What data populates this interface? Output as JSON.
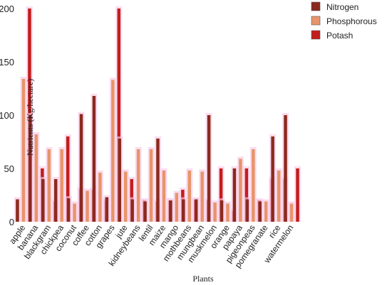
{
  "chart_data": {
    "type": "bar",
    "xlabel": "Plants",
    "ylabel": "Nutrients (Kg/hectare)",
    "ylim": [
      0,
      200
    ],
    "yticks": [
      0,
      50,
      100,
      150,
      200
    ],
    "legend_position": "top-right",
    "categories": [
      "apple",
      "banana",
      "blackgram",
      "chickpea",
      "coconut",
      "coffee",
      "cotton",
      "grapes",
      "jute",
      "kidneybeans",
      "lentil",
      "maize",
      "mango",
      "mothbeans",
      "mungbean",
      "muskmelon",
      "orange",
      "papaya",
      "pigeonpeas",
      "pomegranate",
      "rice",
      "watermelon"
    ],
    "series": [
      {
        "name": "Nitrogen",
        "color": "#8b2a1e",
        "values": [
          21,
          100,
          40,
          40,
          22,
          101,
          118,
          23,
          78,
          21,
          19,
          78,
          20,
          21,
          21,
          100,
          20,
          50,
          21,
          19,
          80,
          100
        ]
      },
      {
        "name": "Phosphorous",
        "color": "#e8956a",
        "values": [
          134,
          82,
          68,
          68,
          17,
          29,
          46,
          133,
          47,
          68,
          68,
          48,
          27,
          48,
          47,
          18,
          17,
          59,
          68,
          19,
          48,
          17
        ]
      },
      {
        "name": "Potash",
        "color": "#c41d1d",
        "values": [
          200,
          50,
          19,
          80,
          31,
          30,
          20,
          200,
          40,
          20,
          19,
          20,
          30,
          20,
          20,
          50,
          10,
          50,
          20,
          40,
          40,
          50
        ]
      }
    ]
  }
}
